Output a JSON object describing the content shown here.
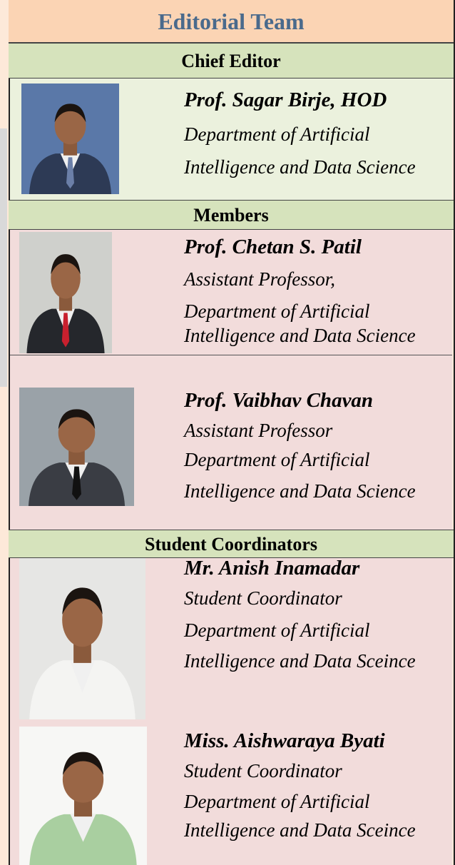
{
  "title": "Editorial Team",
  "sections": [
    {
      "heading": "Chief Editor",
      "people": [
        {
          "name": "Prof. Sagar Birje, HOD",
          "lines": [
            "Department of Artificial",
            "Intelligence and Data Science"
          ]
        }
      ]
    },
    {
      "heading": "Members",
      "people": [
        {
          "name": "Prof. Chetan S. Patil",
          "lines": [
            "Assistant Professor,",
            "Department of Artificial",
            "Intelligence and Data Science"
          ]
        },
        {
          "name": "Prof. Vaibhav Chavan",
          "lines": [
            "Assistant Professor",
            "Department of Artificial",
            "Intelligence and Data Science"
          ]
        }
      ]
    },
    {
      "heading": "Student Coordinators",
      "people": [
        {
          "name": "Mr. Anish Inamadar",
          "lines": [
            "Student Coordinator",
            "Department of Artificial",
            "Intelligence and Data Sceince"
          ]
        },
        {
          "name": "Miss. Aishwaraya Byati",
          "lines": [
            "Student Coordinator",
            "Department of Artificial",
            "Intelligence and Data Sceince"
          ]
        }
      ]
    }
  ]
}
